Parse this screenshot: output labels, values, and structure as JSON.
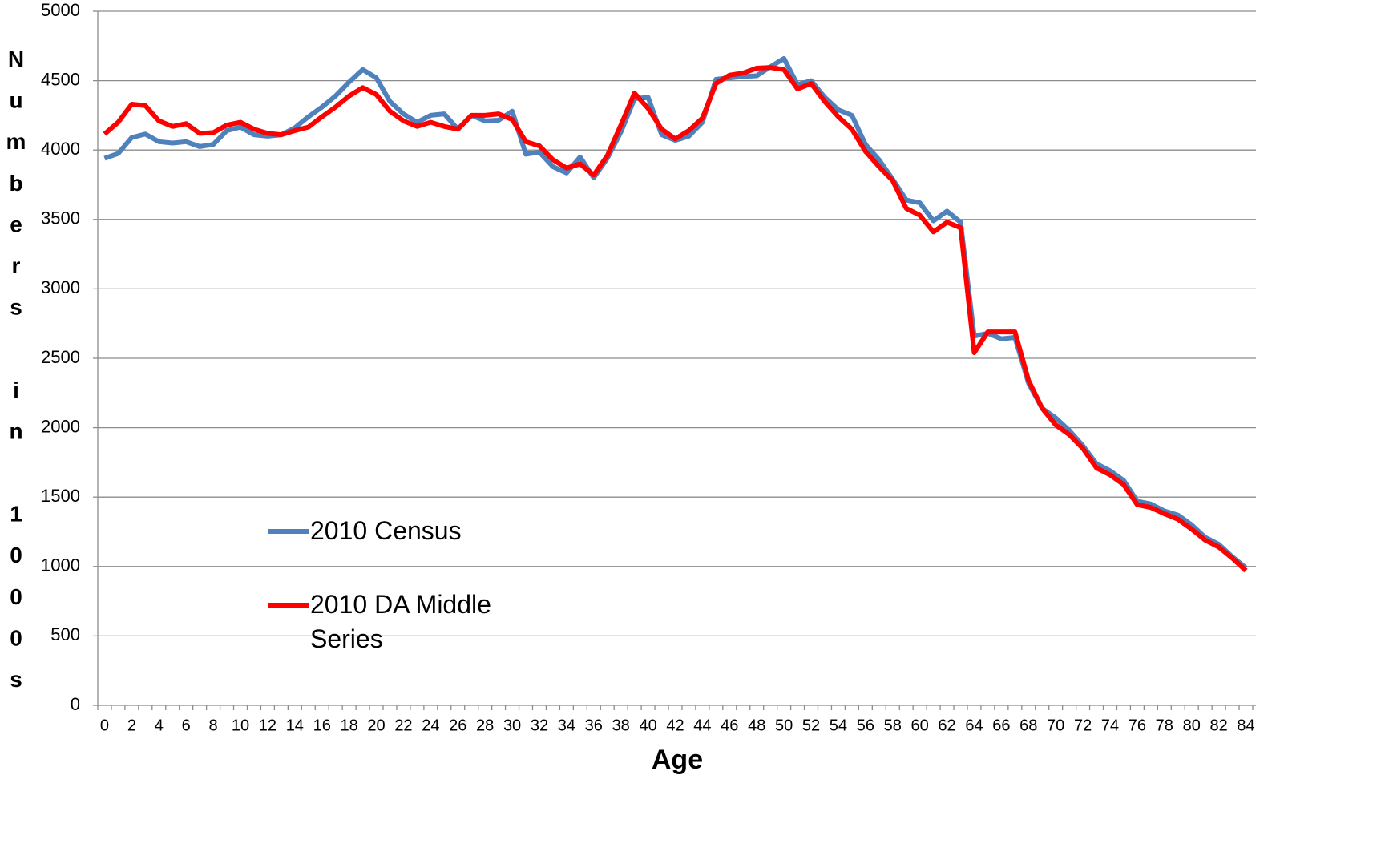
{
  "chart_data": {
    "type": "line",
    "xlabel": "Age",
    "ylabel": "Numbers in 1000s",
    "categories": [
      0,
      null,
      2,
      null,
      4,
      null,
      6,
      null,
      8,
      null,
      10,
      null,
      12,
      null,
      14,
      null,
      16,
      null,
      18,
      null,
      20,
      null,
      22,
      null,
      24,
      null,
      26,
      null,
      28,
      null,
      30,
      null,
      32,
      null,
      34,
      null,
      36,
      null,
      38,
      null,
      40,
      null,
      42,
      null,
      44,
      null,
      46,
      null,
      48,
      null,
      50,
      null,
      52,
      null,
      54,
      null,
      56,
      null,
      58,
      null,
      60,
      null,
      62,
      null,
      64,
      null,
      66,
      null,
      68,
      null,
      70,
      null,
      72,
      null,
      74,
      null,
      76,
      null,
      78,
      null,
      80,
      null,
      82,
      null,
      84
    ],
    "series": [
      {
        "name": "2010 Census",
        "color": "#4f81bd",
        "values": [
          3940,
          3975,
          4090,
          4115,
          4060,
          4050,
          4060,
          4025,
          4040,
          4140,
          4165,
          4110,
          4100,
          4110,
          4160,
          4240,
          4310,
          4390,
          4490,
          4580,
          4520,
          4350,
          4260,
          4200,
          4250,
          4260,
          4150,
          4250,
          4210,
          4215,
          4280,
          3970,
          3985,
          3880,
          3835,
          3950,
          3800,
          3940,
          4130,
          4370,
          4380,
          4110,
          4070,
          4100,
          4200,
          4510,
          4520,
          4530,
          4535,
          4600,
          4660,
          4470,
          4500,
          4380,
          4290,
          4250,
          4040,
          3930,
          3790,
          3640,
          3620,
          3490,
          3560,
          3480,
          2660,
          2680,
          2640,
          2650,
          2320,
          2140,
          2070,
          1980,
          1870,
          1740,
          1690,
          1620,
          1470,
          1450,
          1400,
          1370,
          1300,
          1210,
          1160,
          1070,
          990
        ]
      },
      {
        "name": "2010 DA Middle Series",
        "color": "#ff0000",
        "values": [
          4115,
          4200,
          4330,
          4320,
          4210,
          4170,
          4190,
          4120,
          4125,
          4180,
          4200,
          4150,
          4120,
          4110,
          4140,
          4165,
          4240,
          4310,
          4390,
          4450,
          4400,
          4280,
          4210,
          4170,
          4200,
          4170,
          4150,
          4250,
          4250,
          4260,
          4220,
          4060,
          4030,
          3930,
          3870,
          3900,
          3820,
          3960,
          4180,
          4410,
          4300,
          4150,
          4080,
          4140,
          4230,
          4480,
          4540,
          4555,
          4590,
          4595,
          4580,
          4440,
          4480,
          4350,
          4240,
          4150,
          3990,
          3880,
          3780,
          3580,
          3530,
          3410,
          3480,
          3440,
          2540,
          2690,
          2690,
          2690,
          2340,
          2140,
          2020,
          1950,
          1850,
          1710,
          1660,
          1590,
          1445,
          1425,
          1380,
          1340,
          1270,
          1190,
          1140,
          1060,
          970
        ]
      }
    ],
    "ylim": [
      0,
      5000
    ],
    "yticks": [
      0,
      500,
      1000,
      1500,
      2000,
      2500,
      3000,
      3500,
      4000,
      4500,
      5000
    ],
    "grid": true
  }
}
